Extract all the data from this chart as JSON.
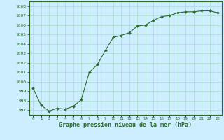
{
  "x": [
    0,
    1,
    2,
    3,
    4,
    5,
    6,
    7,
    8,
    9,
    10,
    11,
    12,
    13,
    14,
    15,
    16,
    17,
    18,
    19,
    20,
    21,
    22,
    23
  ],
  "y": [
    999.3,
    997.5,
    996.9,
    997.2,
    997.1,
    997.4,
    998.1,
    1001.0,
    1001.8,
    1003.3,
    1004.7,
    1004.9,
    1005.2,
    1005.9,
    1006.0,
    1006.5,
    1006.9,
    1007.0,
    1007.3,
    1007.4,
    1007.4,
    1007.5,
    1007.5,
    1007.3
  ],
  "ylim": [
    996.5,
    1008.5
  ],
  "yticks": [
    997,
    998,
    999,
    1000,
    1001,
    1002,
    1003,
    1004,
    1005,
    1006,
    1007,
    1008
  ],
  "xlabel": "Graphe pression niveau de la mer (hPa)",
  "line_color": "#2d6a2d",
  "marker_color": "#2d6a2d",
  "bg_color": "#cceeff",
  "grid_color": "#aaddcc",
  "title": ""
}
